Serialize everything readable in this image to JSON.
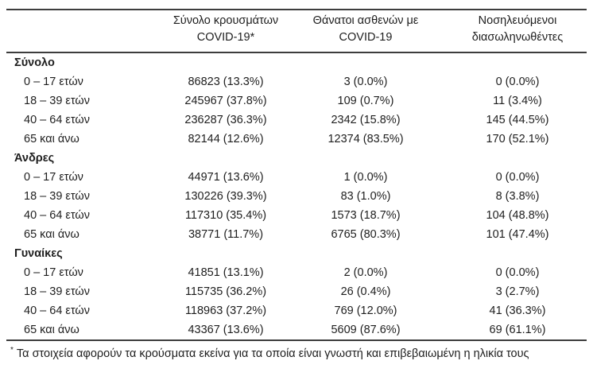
{
  "colors": {
    "background": "#ffffff",
    "text": "#1e1e1e",
    "rule": "#3d3d3d"
  },
  "table": {
    "header": {
      "col_cases": {
        "line1": "Σύνολο κρουσμάτων",
        "line2": "COVID-19*"
      },
      "col_deaths": {
        "line1": "Θάνατοι ασθενών με",
        "line2": "COVID-19"
      },
      "col_intubated": {
        "line1": "Νοσηλευόμενοι",
        "line2": "διασωληνωθέντες"
      }
    },
    "groups": [
      {
        "label": "Σύνολο",
        "rows": [
          {
            "age": "0 – 17 ετών",
            "cases": "86823 (13.3%)",
            "deaths": "3 (0.0%)",
            "intubated": "0 (0.0%)"
          },
          {
            "age": "18 – 39 ετών",
            "cases": "245967 (37.8%)",
            "deaths": "109 (0.7%)",
            "intubated": "11 (3.4%)"
          },
          {
            "age": "40 – 64 ετών",
            "cases": "236287 (36.3%)",
            "deaths": "2342 (15.8%)",
            "intubated": "145 (44.5%)"
          },
          {
            "age": "65 και άνω",
            "cases": "82144 (12.6%)",
            "deaths": "12374 (83.5%)",
            "intubated": "170 (52.1%)"
          }
        ]
      },
      {
        "label": "Άνδρες",
        "rows": [
          {
            "age": "0 – 17 ετών",
            "cases": "44971 (13.6%)",
            "deaths": "1 (0.0%)",
            "intubated": "0 (0.0%)"
          },
          {
            "age": "18 – 39 ετών",
            "cases": "130226 (39.3%)",
            "deaths": "83 (1.0%)",
            "intubated": "8 (3.8%)"
          },
          {
            "age": "40 – 64 ετών",
            "cases": "117310 (35.4%)",
            "deaths": "1573 (18.7%)",
            "intubated": "104 (48.8%)"
          },
          {
            "age": "65 και άνω",
            "cases": "38771 (11.7%)",
            "deaths": "6765 (80.3%)",
            "intubated": "101 (47.4%)"
          }
        ]
      },
      {
        "label": "Γυναίκες",
        "rows": [
          {
            "age": "0 – 17 ετών",
            "cases": "41851 (13.1%)",
            "deaths": "2 (0.0%)",
            "intubated": "0 (0.0%)"
          },
          {
            "age": "18 – 39 ετών",
            "cases": "115735 (36.2%)",
            "deaths": "26 (0.4%)",
            "intubated": "3 (2.7%)"
          },
          {
            "age": "40 – 64 ετών",
            "cases": "118963 (37.2%)",
            "deaths": "769 (12.0%)",
            "intubated": "41 (36.3%)"
          },
          {
            "age": "65 και άνω",
            "cases": "43367 (13.6%)",
            "deaths": "5609 (87.6%)",
            "intubated": "69 (61.1%)"
          }
        ]
      }
    ],
    "footnote": {
      "marker": "*",
      "text": "Τα στοιχεία αφορούν τα κρούσματα εκείνα για τα οποία είναι γνωστή και επιβεβαιωμένη η ηλικία τους"
    }
  }
}
